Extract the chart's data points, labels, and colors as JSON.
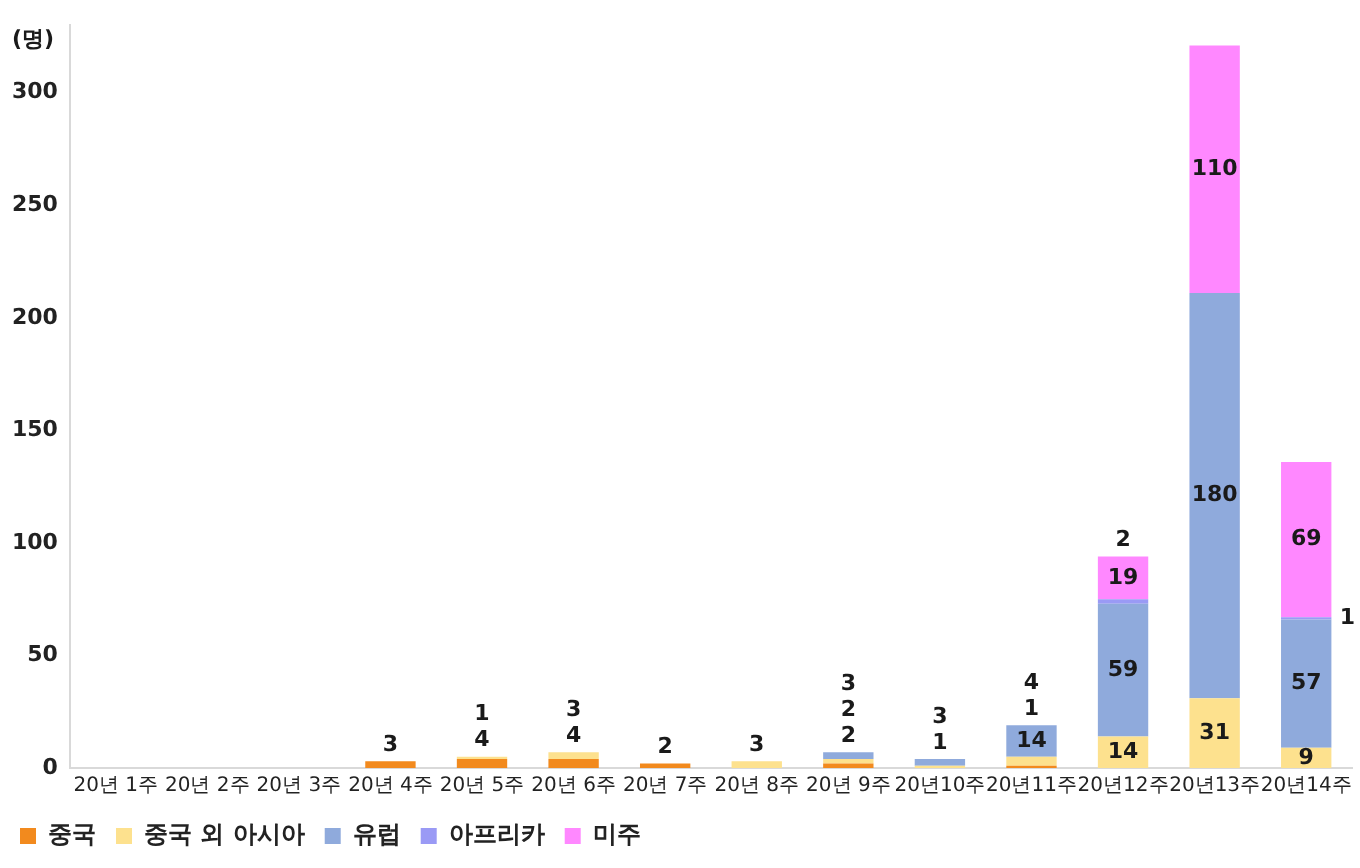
{
  "chart_data": {
    "type": "bar",
    "stacked": true,
    "ylabel": "(명)",
    "categories": [
      "20년 1주",
      "20년 2주",
      "20년 3주",
      "20년 4주",
      "20년 5주",
      "20년 6주",
      "20년 7주",
      "20년 8주",
      "20년 9주",
      "20년10주",
      "20년11주",
      "20년12주",
      "20년13주",
      "20년14주"
    ],
    "series": [
      {
        "name": "중국",
        "color": "#f28a1e",
        "values": [
          null,
          null,
          null,
          3,
          4,
          4,
          2,
          null,
          2,
          null,
          1,
          null,
          null,
          null
        ]
      },
      {
        "name": "중국 외 아시아",
        "color": "#fde18e",
        "values": [
          null,
          null,
          null,
          null,
          1,
          3,
          null,
          3,
          2,
          1,
          4,
          14,
          31,
          9
        ]
      },
      {
        "name": "유럽",
        "color": "#8faadc",
        "values": [
          null,
          null,
          null,
          null,
          null,
          null,
          null,
          null,
          3,
          3,
          14,
          59,
          180,
          57
        ]
      },
      {
        "name": "아프리카",
        "color": "#9a9af5",
        "values": [
          null,
          null,
          null,
          null,
          null,
          null,
          null,
          null,
          null,
          null,
          null,
          2,
          null,
          1
        ]
      },
      {
        "name": "미주",
        "color": "#ff88ff",
        "values": [
          null,
          null,
          null,
          null,
          null,
          null,
          null,
          null,
          null,
          null,
          null,
          19,
          110,
          69
        ]
      }
    ],
    "ylim": [
      0,
      330
    ],
    "yticks": [
      0,
      50,
      100,
      150,
      200,
      250,
      300
    ],
    "grid": false,
    "legend": "bottom left",
    "data_labels": true
  }
}
